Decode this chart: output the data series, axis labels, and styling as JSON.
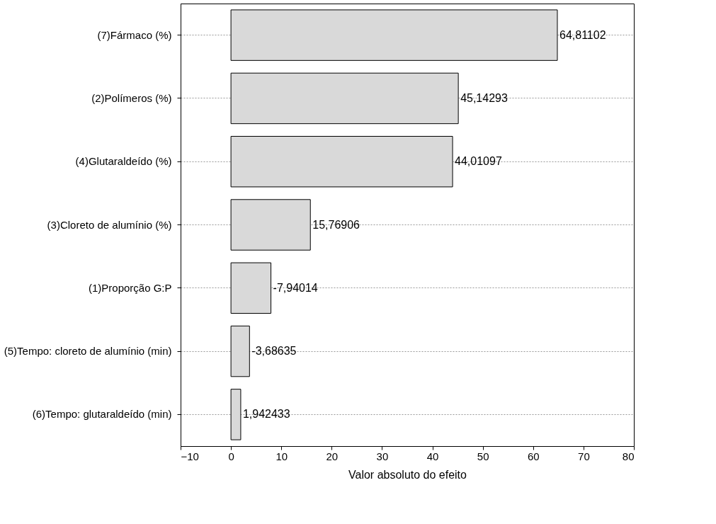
{
  "chart_data": {
    "type": "bar",
    "orientation": "horizontal",
    "xlabel": "Valor absoluto do efeito",
    "categories": [
      "(7)Fármaco (%)",
      "(2)Polímeros (%)",
      "(4)Glutaraldeído (%)",
      "(3)Cloreto de alumínio (%)",
      "(1)Proporção G:P",
      "(5)Tempo: cloreto de alumínio (min)",
      "(6)Tempo: glutaraldeído (min)"
    ],
    "values": [
      64.81102,
      45.14293,
      44.01097,
      15.76906,
      7.94014,
      3.68635,
      1.942433
    ],
    "value_labels": [
      "64,81102",
      "45,14293",
      "44,01097",
      "15,76906",
      "-7,94014",
      "-3,68635",
      "1,942433"
    ],
    "color": "#d9d9d9",
    "xlim": [
      -10,
      80
    ],
    "xticks": [
      -10,
      0,
      10,
      20,
      30,
      40,
      50,
      60,
      70,
      80
    ],
    "grid": "y"
  }
}
